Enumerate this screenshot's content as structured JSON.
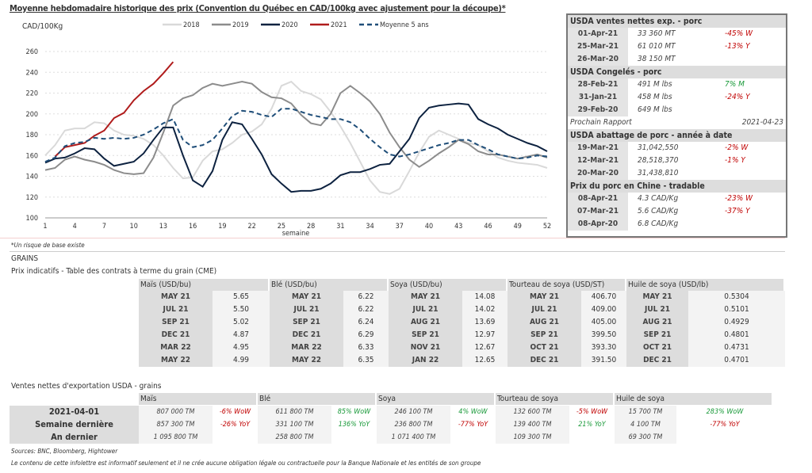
{
  "chart_data": {
    "type": "line",
    "title": "Moyenne hebdomadaire historique des prix (Convention du Québec en CAD/100kg avec ajustement pour la découpe)*",
    "ylabel": "CAD/100Kg",
    "xlabel": "semaine",
    "ylim": [
      100,
      260
    ],
    "yticks": [
      100,
      120,
      140,
      160,
      180,
      200,
      220,
      240,
      260
    ],
    "xticks": [
      1,
      4,
      7,
      10,
      13,
      16,
      19,
      22,
      25,
      28,
      31,
      34,
      37,
      40,
      43,
      46,
      49,
      52
    ],
    "grid": "horizontal dotted",
    "legend": "top",
    "series": [
      {
        "name": "2018",
        "color": "#d9d9d9",
        "dash": false,
        "x_start": 1,
        "values": [
          160,
          170,
          184,
          186,
          186,
          192,
          191,
          184,
          180,
          179,
          176,
          170,
          160,
          148,
          138,
          139,
          155,
          164,
          166,
          172,
          180,
          183,
          190,
          205,
          227,
          231,
          222,
          219,
          214,
          202,
          188,
          172,
          154,
          136,
          125,
          123,
          128,
          145,
          163,
          178,
          184,
          180,
          176,
          172,
          170,
          164,
          158,
          155,
          153,
          152,
          151,
          148
        ]
      },
      {
        "name": "2019",
        "color": "#8c8c8c",
        "dash": false,
        "x_start": 1,
        "values": [
          146,
          148,
          156,
          159,
          156,
          154,
          151,
          146,
          143,
          142,
          143,
          158,
          182,
          208,
          215,
          218,
          225,
          229,
          227,
          229,
          231,
          229,
          221,
          216,
          215,
          210,
          199,
          191,
          189,
          200,
          220,
          227,
          220,
          212,
          200,
          182,
          168,
          156,
          149,
          155,
          162,
          168,
          175,
          171,
          164,
          161,
          161,
          159,
          157,
          159,
          161,
          158
        ]
      },
      {
        "name": "2020",
        "color": "#0d2240",
        "dash": false,
        "x_start": 1,
        "values": [
          153,
          157,
          158,
          162,
          167,
          166,
          157,
          150,
          152,
          154,
          162,
          175,
          187,
          187,
          160,
          136,
          130,
          145,
          175,
          192,
          190,
          176,
          161,
          142,
          133,
          125,
          126,
          126,
          128,
          133,
          141,
          144,
          144,
          147,
          151,
          152,
          164,
          176,
          196,
          206,
          208,
          209,
          210,
          209,
          195,
          190,
          186,
          180,
          176,
          172,
          169,
          164
        ]
      },
      {
        "name": "2021",
        "color": "#b01c1c",
        "dash": false,
        "x_start": 2,
        "values": [
          159,
          168,
          170,
          172,
          179,
          184,
          196,
          201,
          213,
          222,
          229,
          239,
          250
        ]
      },
      {
        "name": "Moyenne 5 ans",
        "color": "#1f4e79",
        "dash": true,
        "x_start": 1,
        "values": [
          154,
          158,
          169,
          172,
          173,
          177,
          176,
          177,
          176,
          177,
          180,
          185,
          191,
          195,
          175,
          168,
          170,
          175,
          186,
          198,
          203,
          202,
          199,
          197,
          205,
          205,
          202,
          199,
          197,
          195,
          195,
          192,
          185,
          176,
          168,
          161,
          159,
          161,
          164,
          167,
          170,
          172,
          175,
          175,
          170,
          166,
          161,
          159,
          157,
          158,
          160,
          159
        ]
      }
    ]
  },
  "footnote": "*Un risque de base existe",
  "panel": {
    "sections": [
      {
        "title": "USDA ventes nettes exp. - porc",
        "rows": [
          [
            "01-Apr-21",
            "33 360  MT",
            "-45% W",
            "neg"
          ],
          [
            "25-Mar-21",
            "61 010  MT",
            "-13% Y",
            "neg"
          ],
          [
            "26-Mar-20",
            "38 150  MT",
            "",
            ""
          ]
        ]
      },
      {
        "title": "USDA Congelés - porc",
        "rows": [
          [
            "28-Feb-21",
            "491 M lbs",
            "7% M",
            "pos"
          ],
          [
            "31-Jan-21",
            "458 M lbs",
            "-24% Y",
            "neg"
          ],
          [
            "29-Feb-20",
            "649 M lbs",
            "",
            ""
          ]
        ]
      },
      {
        "title": "USDA abattage de porc - année à date",
        "rows": [
          [
            "19-Mar-21",
            "31,042,550",
            "-2% W",
            "neg"
          ],
          [
            "12-Mar-21",
            "28,518,370",
            "-1% Y",
            "neg"
          ],
          [
            "20-Mar-20",
            "31,438,810",
            "",
            ""
          ]
        ]
      },
      {
        "title": "Prix du porc en Chine - tradable",
        "rows": [
          [
            "08-Apr-21",
            "4.3 CAD/Kg",
            "-23% W",
            "neg"
          ],
          [
            "07-Mar-21",
            "5.6 CAD/Kg",
            "-37% Y",
            "neg"
          ],
          [
            "08-Apr-20",
            "6.8 CAD/Kg",
            "",
            ""
          ]
        ]
      }
    ],
    "next_report_label": "Prochain Rapport",
    "next_report_date": "2021-04-23"
  },
  "grains": {
    "section": "GRAINS",
    "title": "Prix indicatifs - Table des contrats à terme du grain (CME)",
    "columns": [
      {
        "header": "Maïs (USD/bu)",
        "rows": [
          [
            "MAY 21",
            "5.65"
          ],
          [
            "JUL 21",
            "5.50"
          ],
          [
            "SEP 21",
            "5.02"
          ],
          [
            "DEC 21",
            "4.87"
          ],
          [
            "MAR 22",
            "4.95"
          ],
          [
            "MAY 22",
            "4.99"
          ]
        ]
      },
      {
        "header": "Blé (USD/bu)",
        "rows": [
          [
            "MAY 21",
            "6.22"
          ],
          [
            "JUL 21",
            "6.22"
          ],
          [
            "SEP 21",
            "6.24"
          ],
          [
            "DEC 21",
            "6.29"
          ],
          [
            "MAR 22",
            "6.33"
          ],
          [
            "MAY 22",
            "6.35"
          ]
        ]
      },
      {
        "header": "Soya (USD/bu)",
        "rows": [
          [
            "MAY 21",
            "14.08"
          ],
          [
            "JUL 21",
            "14.02"
          ],
          [
            "AUG 21",
            "13.69"
          ],
          [
            "SEP 21",
            "12.97"
          ],
          [
            "NOV 21",
            "12.67"
          ],
          [
            "JAN 22",
            "12.65"
          ]
        ]
      },
      {
        "header": "Tourteau de soya (USD/ST)",
        "rows": [
          [
            "MAY 21",
            "406.70"
          ],
          [
            "JUL 21",
            "409.00"
          ],
          [
            "AUG 21",
            "405.00"
          ],
          [
            "SEP 21",
            "399.50"
          ],
          [
            "OCT 21",
            "393.30"
          ],
          [
            "DEC 21",
            "391.50"
          ]
        ]
      },
      {
        "header": "Huile de soya (USD/lb)",
        "rows": [
          [
            "MAY 21",
            "0.5304"
          ],
          [
            "JUL 21",
            "0.5101"
          ],
          [
            "AUG 21",
            "0.4929"
          ],
          [
            "SEP 21",
            "0.4801"
          ],
          [
            "OCT 21",
            "0.4731"
          ],
          [
            "DEC 21",
            "0.4701"
          ]
        ]
      }
    ]
  },
  "exports": {
    "title": "Ventes nettes d'exportation USDA - grains",
    "row_labels": [
      "2021-04-01",
      "Semaine dernière",
      "An dernier"
    ],
    "columns": [
      {
        "header": "Maïs",
        "values": [
          "807 000 TM",
          "857 300 TM",
          "1 095 800 TM"
        ],
        "changes": [
          [
            "-6% WoW",
            "neg"
          ],
          [
            "-26% YoY",
            "neg"
          ]
        ]
      },
      {
        "header": "Blé",
        "values": [
          "611 800 TM",
          "331 100 TM",
          "258 800 TM"
        ],
        "changes": [
          [
            "85% WoW",
            "pos"
          ],
          [
            "136% YoY",
            "pos"
          ]
        ]
      },
      {
        "header": "Soya",
        "values": [
          "246 100 TM",
          "236 800 TM",
          "1 071 400 TM"
        ],
        "changes": [
          [
            "4% WoW",
            "pos"
          ],
          [
            "-77% YoY",
            "neg"
          ]
        ]
      },
      {
        "header": "Tourteau de soya",
        "values": [
          "132 600 TM",
          "139 400 TM",
          "109 300 TM"
        ],
        "changes": [
          [
            "-5% WoW",
            "neg"
          ],
          [
            "21% YoY",
            "pos"
          ]
        ]
      },
      {
        "header": "Huile de soya",
        "values": [
          "15 700 TM",
          "4 100 TM",
          "69 300 TM"
        ],
        "changes": [
          [
            "283% WoW",
            "pos"
          ],
          [
            "-77% YoY",
            "neg"
          ]
        ]
      }
    ]
  },
  "sources": "Sources: BNC, Bloomberg, Hightower",
  "disclaimer": "Le contenu de cette infolettre est informatif seulement et il ne crée aucune obligation légale ou contractuelle pour la Banque Nationale et les entités de son groupe"
}
